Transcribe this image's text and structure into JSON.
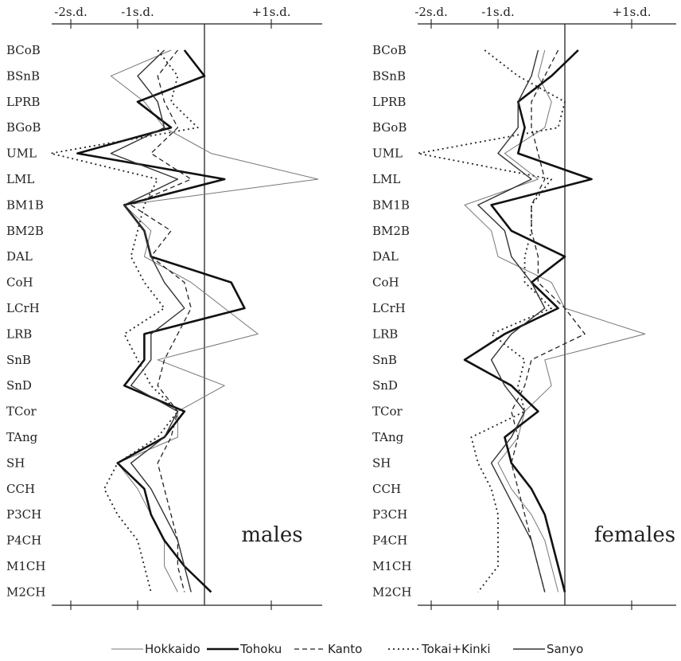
{
  "chart_data": {
    "type": "line",
    "orientation": "vertical-profile",
    "x_tick_labels": [
      "-2s.d.",
      "-1s.d.",
      "+1s.d."
    ],
    "x_tick_values": [
      -2,
      -1,
      1
    ],
    "xlim": [
      -2.3,
      1.8
    ],
    "variables": [
      "BCoB",
      "BSnB",
      "LPRB",
      "BGoB",
      "UML",
      "LML",
      "BM1B",
      "BM2B",
      "DAL",
      "CoH",
      "LCrH",
      "LRB",
      "SnB",
      "SnD",
      "TCor",
      "TAng",
      "SH",
      "CCH",
      "P3CH",
      "P4CH",
      "M1CH",
      "M2CH"
    ],
    "legend": [
      {
        "name": "Hokkaido",
        "style": "thin"
      },
      {
        "name": "Tohoku",
        "style": "thick"
      },
      {
        "name": "Kanto",
        "style": "dashed"
      },
      {
        "name": "Tokai+Kinki",
        "style": "dotted"
      },
      {
        "name": "Sanyo",
        "style": "medium"
      }
    ],
    "panels": [
      {
        "label": "males",
        "series": [
          {
            "name": "Hokkaido",
            "values": [
              -0.5,
              -1.4,
              -0.9,
              -0.6,
              0.1,
              1.7,
              -1.2,
              -0.8,
              -0.9,
              -0.2,
              0.3,
              0.8,
              -0.7,
              0.3,
              -0.4,
              -0.4,
              -1.3,
              -1.0,
              -0.8,
              -0.6,
              -0.6,
              -0.4
            ]
          },
          {
            "name": "Tohoku",
            "values": [
              -0.3,
              0.0,
              -1.0,
              -0.5,
              -1.9,
              0.3,
              -1.2,
              -0.9,
              -0.8,
              0.4,
              0.6,
              -0.9,
              -0.9,
              -1.2,
              -0.3,
              -0.6,
              -1.3,
              -0.9,
              -0.8,
              -0.6,
              -0.3,
              0.1
            ]
          },
          {
            "name": "Kanto",
            "values": [
              -0.4,
              -0.7,
              -0.6,
              -0.4,
              -0.8,
              -0.2,
              -1.1,
              -0.5,
              -0.8,
              -0.3,
              -0.2,
              -0.4,
              -0.6,
              -0.7,
              -0.4,
              -0.5,
              -0.7,
              -0.6,
              -0.5,
              -0.4,
              -0.4,
              -0.3
            ]
          },
          {
            "name": "Tokai+Kinki",
            "values": [
              -0.7,
              -0.4,
              -0.5,
              -0.1,
              -2.3,
              -0.7,
              -0.9,
              -1.0,
              -1.1,
              -0.9,
              -0.6,
              -1.2,
              -1.0,
              -0.8,
              -0.4,
              -0.7,
              -1.3,
              -1.5,
              -1.3,
              -1.0,
              -0.9,
              -0.8
            ]
          },
          {
            "name": "Sanyo",
            "values": [
              -0.6,
              -1.0,
              -0.7,
              -0.6,
              -1.4,
              -0.4,
              -1.2,
              -0.9,
              -0.8,
              -0.6,
              -0.3,
              -0.8,
              -0.8,
              -1.1,
              -0.4,
              -0.6,
              -1.1,
              -0.8,
              -0.6,
              -0.4,
              -0.3,
              -0.2
            ]
          }
        ]
      },
      {
        "label": "females",
        "series": [
          {
            "name": "Hokkaido",
            "values": [
              -0.3,
              -0.4,
              -0.2,
              -0.3,
              -0.9,
              -0.4,
              -1.5,
              -1.1,
              -1.0,
              -0.2,
              0.0,
              1.2,
              -0.3,
              -0.2,
              -0.6,
              -0.7,
              -1.0,
              -0.8,
              -0.5,
              -0.3,
              -0.2,
              -0.1
            ]
          },
          {
            "name": "Tohoku",
            "values": [
              0.2,
              -0.2,
              -0.7,
              -0.6,
              -0.7,
              0.4,
              -1.1,
              -0.8,
              0.0,
              -0.5,
              -0.1,
              -0.9,
              -1.5,
              -0.8,
              -0.4,
              -0.9,
              -0.8,
              -0.5,
              -0.3,
              -0.2,
              -0.1,
              0.0
            ]
          },
          {
            "name": "Kanto",
            "values": [
              -0.1,
              -0.3,
              -0.5,
              -0.5,
              -0.4,
              -0.3,
              -0.5,
              -0.5,
              -0.4,
              -0.4,
              0.0,
              0.3,
              -0.5,
              -0.6,
              -0.8,
              -0.7,
              -0.8,
              -0.7,
              -0.6,
              -0.5,
              -0.4,
              -0.3
            ]
          },
          {
            "name": "Tokai+Kinki",
            "values": [
              -1.2,
              -0.7,
              0.0,
              -0.1,
              -2.2,
              -0.2,
              -0.5,
              -0.5,
              -0.6,
              -0.6,
              -0.2,
              -1.1,
              -0.6,
              -0.7,
              -0.6,
              -1.4,
              -1.3,
              -1.1,
              -1.0,
              -1.0,
              -1.0,
              -1.3
            ]
          },
          {
            "name": "Sanyo",
            "values": [
              -0.4,
              -0.5,
              -0.7,
              -0.7,
              -1.0,
              -0.5,
              -1.3,
              -0.9,
              -0.8,
              -0.5,
              -0.3,
              -0.8,
              -1.1,
              -0.9,
              -0.6,
              -0.8,
              -1.1,
              -0.9,
              -0.7,
              -0.5,
              -0.4,
              -0.3
            ]
          }
        ]
      }
    ]
  }
}
